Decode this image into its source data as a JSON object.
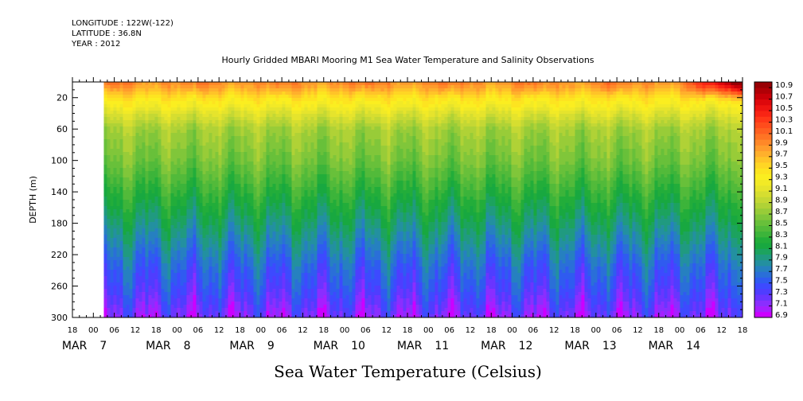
{
  "header": {
    "longitude": "LONGITUDE : 122W(-122)",
    "latitude": "LATITUDE : 36.8N",
    "year": "YEAR : 2012"
  },
  "title": "Hourly Gridded MBARI Mooring M1 Sea Water Temperature and Salinity Observations",
  "footer_label": "Sea Water Temperature (Celsius)",
  "chart_data": {
    "type": "heatmap",
    "title": "Hourly Gridded MBARI Mooring M1 Sea Water Temperature and Salinity Observations",
    "xlabel": "",
    "ylabel": "DEPTH (m)",
    "colorbar_label": "Sea Water Temperature (Celsius)",
    "x_hour_range": [
      "MAR 6 18:00",
      "MAR 14 18:00"
    ],
    "data_start": "MAR 7 03:00",
    "hour_tick_labels": [
      "18",
      "00",
      "06",
      "12",
      "18",
      "00",
      "06",
      "12",
      "18",
      "00",
      "06",
      "12",
      "18",
      "00",
      "06",
      "12",
      "18",
      "00",
      "06",
      "12",
      "18",
      "00",
      "06",
      "12",
      "18",
      "00",
      "06",
      "12",
      "18",
      "00",
      "06",
      "12",
      "18"
    ],
    "day_labels": [
      {
        "month": "MAR",
        "day": "7",
        "at": "MAR 7 00:00"
      },
      {
        "month": "MAR",
        "day": "8",
        "at": "MAR 8 00:00"
      },
      {
        "month": "MAR",
        "day": "9",
        "at": "MAR 9 00:00"
      },
      {
        "month": "MAR",
        "day": "10",
        "at": "MAR 10 00:00"
      },
      {
        "month": "MAR",
        "day": "11",
        "at": "MAR 11 00:00"
      },
      {
        "month": "MAR",
        "day": "12",
        "at": "MAR 12 00:00"
      },
      {
        "month": "MAR",
        "day": "13",
        "at": "MAR 13 00:00"
      },
      {
        "month": "MAR",
        "day": "14",
        "at": "MAR 14 00:00"
      }
    ],
    "y_axis": {
      "min": 0,
      "max": 300,
      "inverted": true,
      "ticks": [
        20,
        60,
        100,
        140,
        180,
        220,
        260,
        300
      ]
    },
    "colorbar": {
      "values": [
        6.9,
        7.0,
        7.1,
        7.2,
        7.3,
        7.4,
        7.5,
        7.6,
        7.7,
        7.8,
        7.9,
        8.0,
        8.1,
        8.2,
        8.3,
        8.4,
        8.5,
        8.6,
        8.7,
        8.8,
        8.9,
        9.0,
        9.1,
        9.2,
        9.3,
        9.4,
        9.5,
        9.6,
        9.7,
        9.8,
        9.9,
        10.0,
        10.1,
        10.2,
        10.3,
        10.4,
        10.5,
        10.6,
        10.7,
        10.8,
        10.9,
        11.0
      ],
      "labels": [
        "6.9",
        "7.1",
        "7.3",
        "7.5",
        "7.7",
        "7.9",
        "8.1",
        "8.3",
        "8.5",
        "8.7",
        "8.9",
        "9.1",
        "9.3",
        "9.5",
        "9.7",
        "9.9",
        "10.1",
        "10.3",
        "10.5",
        "10.7",
        "10.9"
      ],
      "colors": [
        "#cc00ff",
        "#a61fff",
        "#8a2eff",
        "#6a35ff",
        "#4f3dff",
        "#3d4aff",
        "#2f5bf0",
        "#2a6fd8",
        "#2680c0",
        "#2390a0",
        "#209a80",
        "#1ca35e",
        "#18a840",
        "#22ad3a",
        "#3cb43a",
        "#52ba3a",
        "#68c03a",
        "#80c63a",
        "#98cc38",
        "#b0d236",
        "#c4d834",
        "#d6de30",
        "#e6e42c",
        "#f2ea26",
        "#fbee20",
        "#fde420",
        "#ffd624",
        "#ffc428",
        "#ffb02c",
        "#ff9c2c",
        "#ff8828",
        "#ff7424",
        "#ff6020",
        "#ff4c1c",
        "#ff3818",
        "#f82414",
        "#ee1410",
        "#de080c",
        "#c80008",
        "#b00006",
        "#980004"
      ]
    },
    "mean_profile": {
      "depth": [
        0,
        10,
        20,
        30,
        40,
        50,
        60,
        80,
        100,
        120,
        140,
        160,
        180,
        200,
        220,
        240,
        260,
        280,
        300
      ],
      "temperature": [
        9.9,
        9.7,
        9.45,
        9.3,
        9.1,
        8.95,
        8.8,
        8.7,
        8.6,
        8.45,
        8.3,
        8.15,
        8.0,
        7.85,
        7.7,
        7.55,
        7.45,
        7.3,
        7.15
      ]
    }
  }
}
